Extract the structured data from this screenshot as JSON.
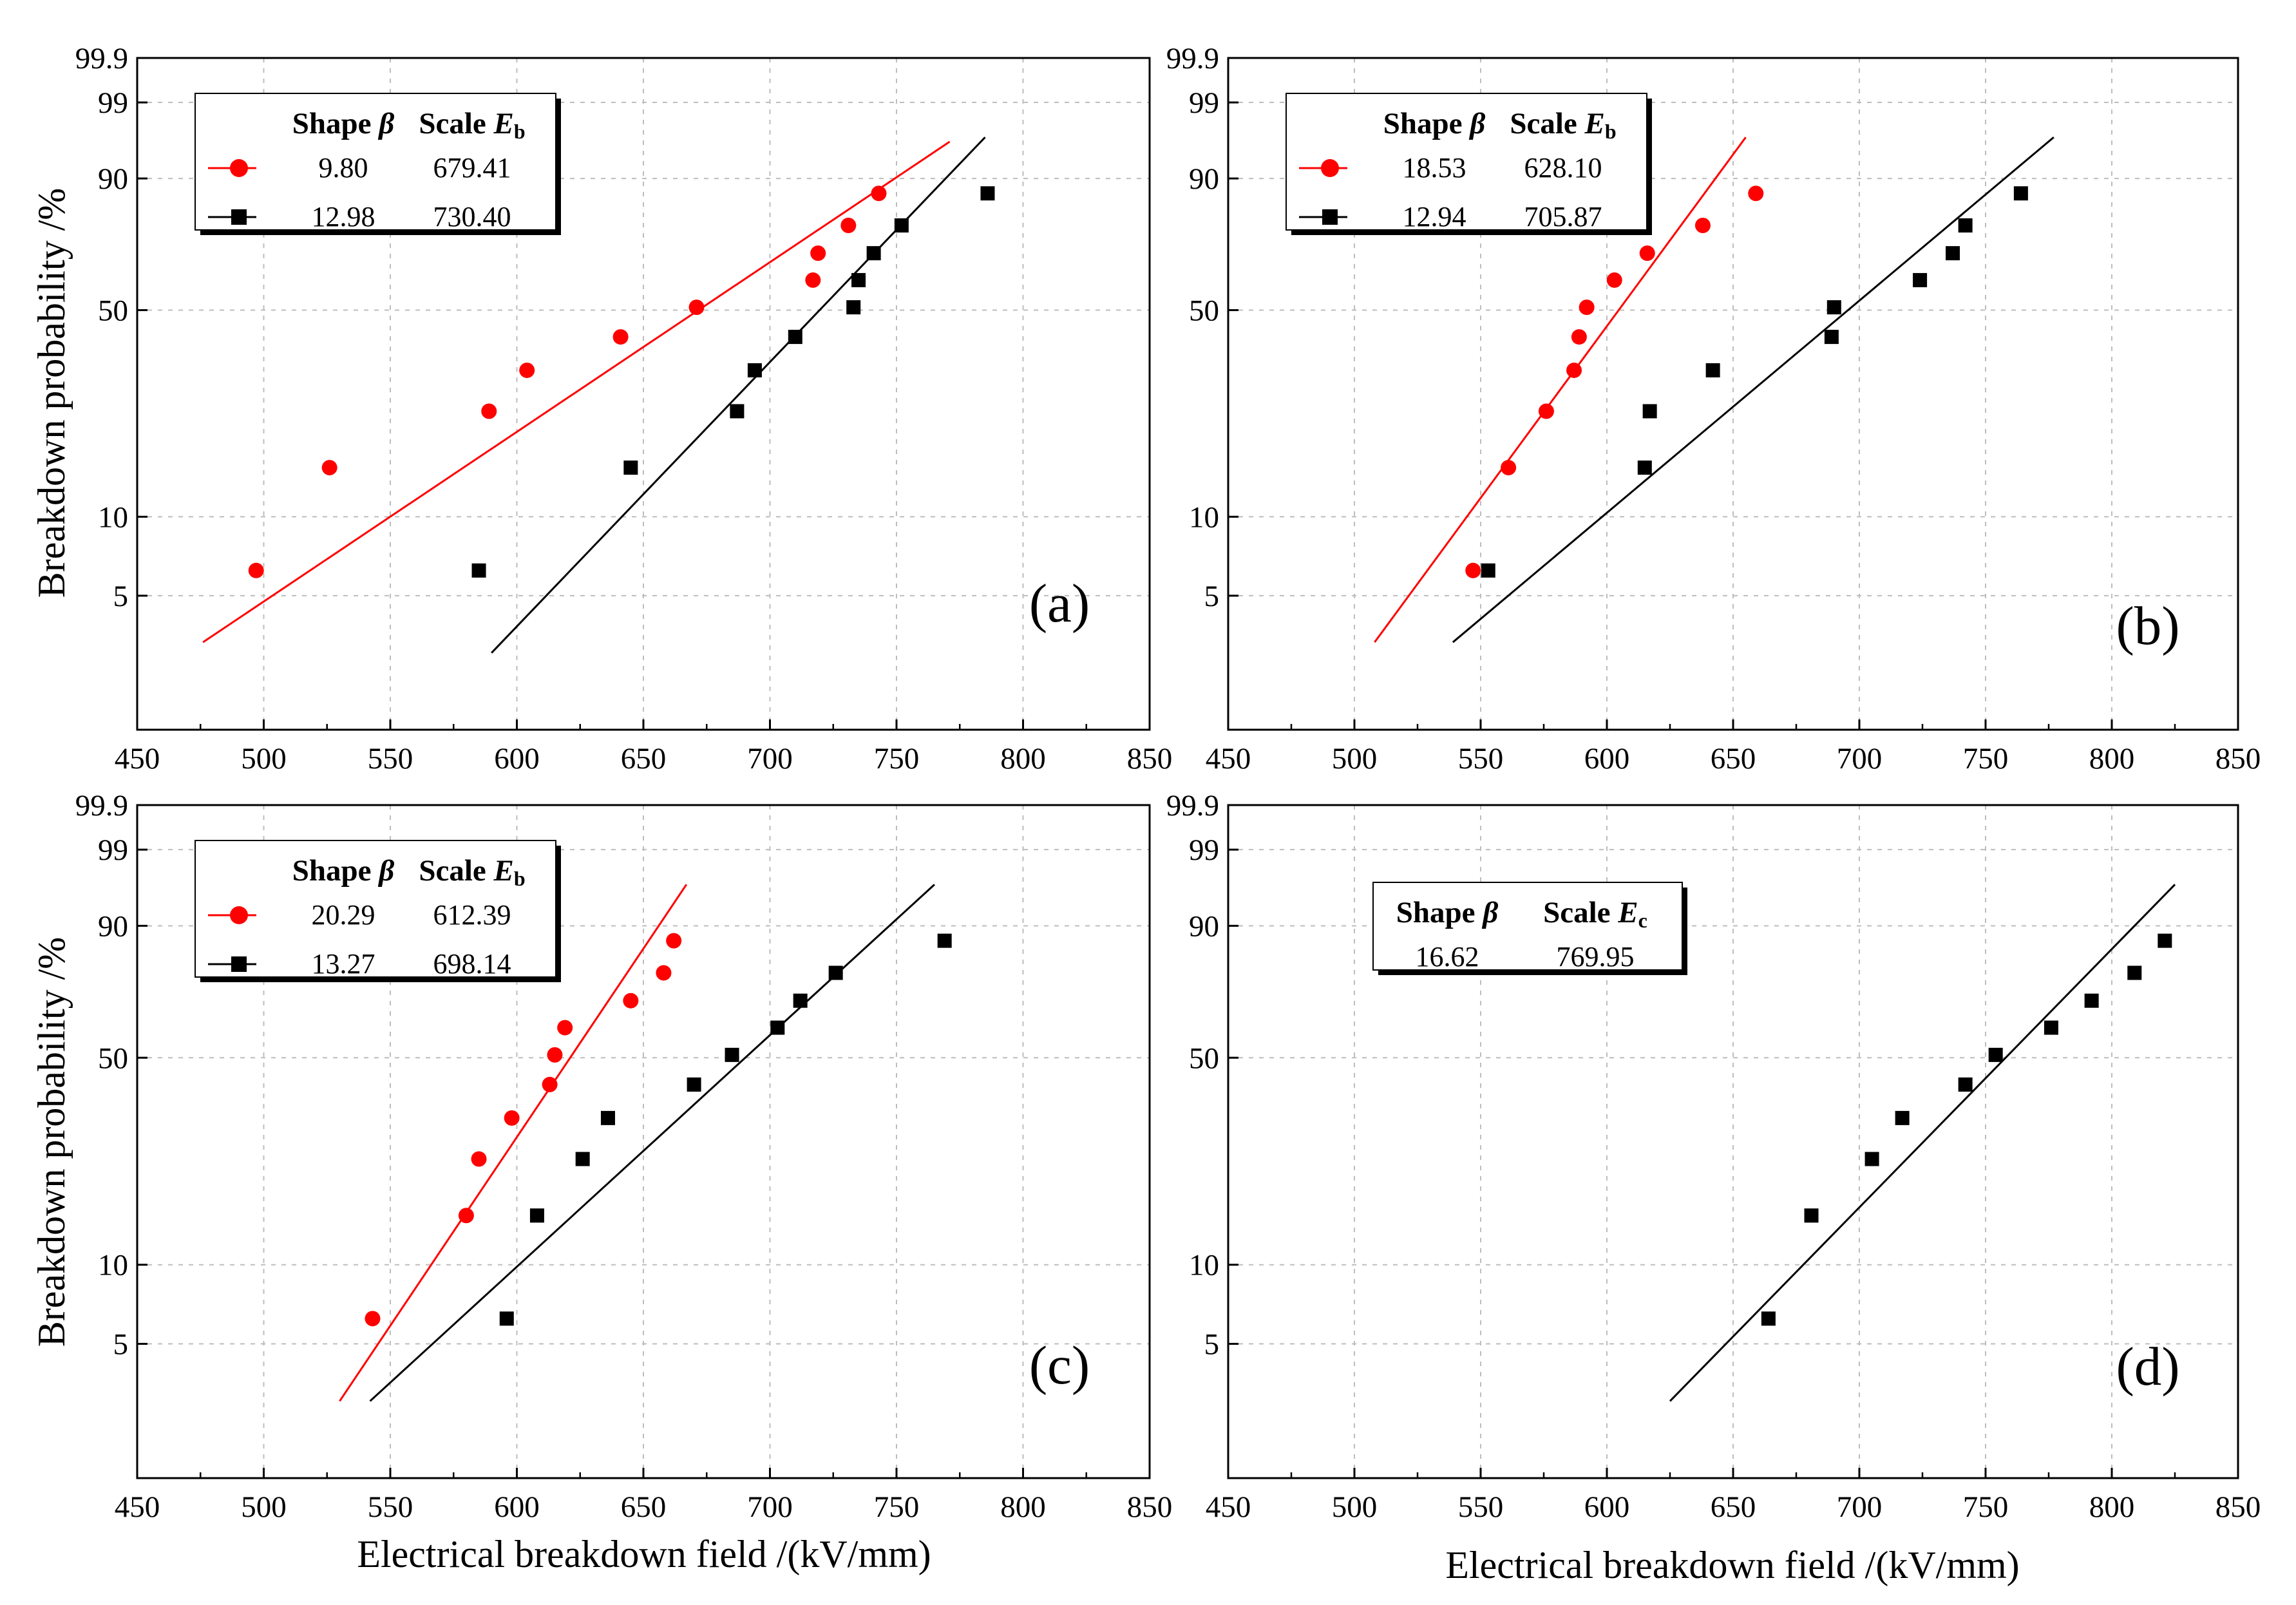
{
  "figure": {
    "xlabel": "Electrical breakdown field /(kV/mm)",
    "ylabel": "Breakdown probability /%",
    "colors": {
      "red": "#ff0000",
      "black": "#000000",
      "grid": "#bdbdbd"
    }
  },
  "chart_data": [
    {
      "type": "scatter",
      "panel": "(a)",
      "scale": "weibull",
      "xlim": [
        450,
        850
      ],
      "x_ticks": [
        "450",
        "500",
        "550",
        "600",
        "650",
        "700",
        "750",
        "800",
        "850"
      ],
      "y_ticks": [
        "5",
        "10",
        "50",
        "90",
        "99",
        "99.9"
      ],
      "legend": {
        "headers": [
          "Shape β",
          "Scale Eb"
        ],
        "rows": [
          {
            "color": "#ff0000",
            "marker": "circle",
            "shape": "9.80",
            "scale": "679.41"
          },
          {
            "color": "#000000",
            "marker": "square",
            "shape": "12.98",
            "scale": "730.40"
          }
        ]
      },
      "series": [
        {
          "color": "#ff0000",
          "marker": "circle",
          "x": [
            497,
            526,
            589,
            604,
            641,
            671,
            717,
            719,
            731,
            743
          ],
          "y": [
            6.25,
            15.2,
            24.1,
            33.0,
            41.9,
            50.9,
            59.8,
            68.8,
            77.7,
            86.6
          ],
          "fit": {
            "x": [
              476,
              771
            ],
            "y": [
              3.3,
              96.0
            ]
          }
        },
        {
          "color": "#000000",
          "marker": "square",
          "x": [
            585,
            645,
            687,
            694,
            710,
            733,
            735,
            741,
            752,
            786
          ],
          "y": [
            6.25,
            15.2,
            24.1,
            33.0,
            41.9,
            50.9,
            59.8,
            68.8,
            77.7,
            86.6
          ],
          "fit": {
            "x": [
              590,
              785
            ],
            "y": [
              3.0,
              96.5
            ]
          }
        }
      ]
    },
    {
      "type": "scatter",
      "panel": "(b)",
      "scale": "weibull",
      "xlim": [
        450,
        850
      ],
      "x_ticks": [
        "450",
        "500",
        "550",
        "600",
        "650",
        "700",
        "750",
        "800",
        "850"
      ],
      "y_ticks": [
        "5",
        "10",
        "50",
        "90",
        "99",
        "99.9"
      ],
      "legend": {
        "headers": [
          "Shape β",
          "Scale Eb"
        ],
        "rows": [
          {
            "color": "#ff0000",
            "marker": "circle",
            "shape": "18.53",
            "scale": "628.10"
          },
          {
            "color": "#000000",
            "marker": "square",
            "shape": "12.94",
            "scale": "705.87"
          }
        ]
      },
      "series": [
        {
          "color": "#ff0000",
          "marker": "circle",
          "x": [
            547,
            561,
            576,
            587,
            589,
            592,
            603,
            616,
            638,
            659
          ],
          "y": [
            6.25,
            15.2,
            24.1,
            33.0,
            41.9,
            50.9,
            59.8,
            68.8,
            77.7,
            86.6
          ],
          "fit": {
            "x": [
              508,
              655
            ],
            "y": [
              3.3,
              96.5
            ]
          }
        },
        {
          "color": "#000000",
          "marker": "square",
          "x": [
            553,
            615,
            617,
            642,
            689,
            690,
            724,
            737,
            742,
            764
          ],
          "y": [
            6.25,
            15.2,
            24.1,
            33.0,
            41.9,
            50.9,
            59.8,
            68.8,
            77.7,
            86.6
          ],
          "fit": {
            "x": [
              539,
              777
            ],
            "y": [
              3.3,
              96.5
            ]
          }
        }
      ]
    },
    {
      "type": "scatter",
      "panel": "(c)",
      "scale": "weibull",
      "xlim": [
        450,
        850
      ],
      "x_ticks": [
        "450",
        "500",
        "550",
        "600",
        "650",
        "700",
        "750",
        "800",
        "850"
      ],
      "y_ticks": [
        "5",
        "10",
        "50",
        "90",
        "99",
        "99.9"
      ],
      "legend": {
        "headers": [
          "Shape β",
          "Scale Eb"
        ],
        "rows": [
          {
            "color": "#ff0000",
            "marker": "circle",
            "shape": "20.29",
            "scale": "612.39"
          },
          {
            "color": "#000000",
            "marker": "square",
            "shape": "13.27",
            "scale": "698.14"
          }
        ]
      },
      "series": [
        {
          "color": "#ff0000",
          "marker": "circle",
          "x": [
            543,
            580,
            585,
            598,
            613,
            615,
            619,
            645,
            658,
            662
          ],
          "y": [
            6.25,
            15.2,
            24.1,
            33.0,
            41.9,
            50.9,
            59.8,
            68.8,
            77.7,
            86.6
          ],
          "fit": {
            "x": [
              530,
              667
            ],
            "y": [
              3.0,
              96.5
            ]
          }
        },
        {
          "color": "#000000",
          "marker": "square",
          "x": [
            596,
            608,
            626,
            636,
            670,
            685,
            703,
            712,
            726,
            769
          ],
          "y": [
            6.25,
            15.2,
            24.1,
            33.0,
            41.9,
            50.9,
            59.8,
            68.8,
            77.7,
            86.6
          ],
          "fit": {
            "x": [
              542,
              765
            ],
            "y": [
              3.0,
              96.5
            ]
          }
        }
      ]
    },
    {
      "type": "scatter",
      "panel": "(d)",
      "scale": "weibull",
      "xlim": [
        450,
        850
      ],
      "x_ticks": [
        "450",
        "500",
        "550",
        "600",
        "650",
        "700",
        "750",
        "800",
        "850"
      ],
      "y_ticks": [
        "5",
        "10",
        "50",
        "90",
        "99",
        "99.9"
      ],
      "legend": {
        "headers": [
          "Shape β",
          "Scale Ec"
        ],
        "rows": [
          {
            "color": "#000000",
            "marker": "none",
            "shape": "16.62",
            "scale": "769.95"
          }
        ]
      },
      "series": [
        {
          "color": "#000000",
          "marker": "square",
          "x": [
            664,
            681,
            705,
            717,
            742,
            754,
            776,
            792,
            809,
            821
          ],
          "y": [
            6.25,
            15.2,
            24.1,
            33.0,
            41.9,
            50.9,
            59.8,
            68.8,
            77.7,
            86.6
          ],
          "fit": {
            "x": [
              625,
              825
            ],
            "y": [
              3.0,
              96.5
            ]
          }
        }
      ]
    }
  ]
}
